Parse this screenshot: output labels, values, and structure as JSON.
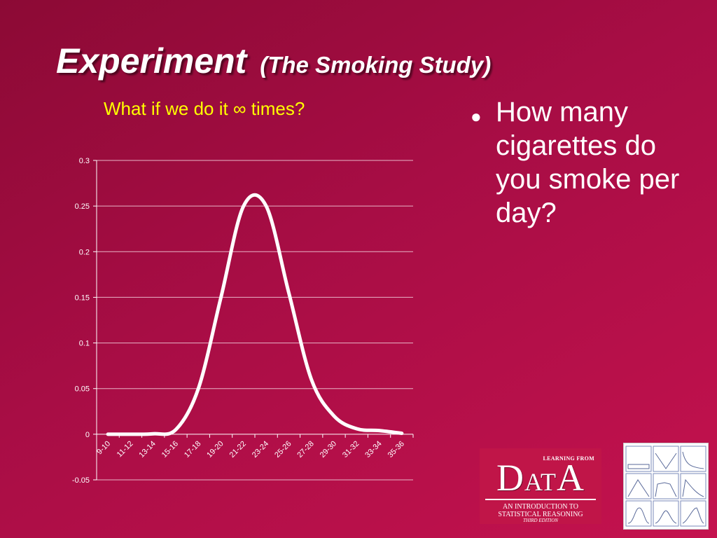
{
  "slide": {
    "title_main": "Experiment",
    "title_sub": "(The Smoking Study)",
    "subtitle": "What if we do it ∞ times?",
    "bullet_symbol": "●",
    "bullet_text": "How many cigarettes do you smoke per day?",
    "background_color": "#a80d45",
    "accent_color": "#ffff00"
  },
  "logo": {
    "top_text": "LEARNING FROM",
    "big_letters": [
      "D",
      "AT",
      "A"
    ],
    "line1": "AN INTRODUCTION TO",
    "line2": "STATISTICAL REASONING",
    "line3": "THIRD EDITION"
  },
  "chart_data": {
    "type": "line",
    "title": "",
    "xlabel": "",
    "ylabel": "",
    "categories": [
      "9-10",
      "11-12",
      "13-14",
      "15-16",
      "17-18",
      "19-20",
      "21-22",
      "23-24",
      "25-26",
      "27-28",
      "29-30",
      "31-32",
      "33-34",
      "35-36"
    ],
    "series": [
      {
        "color": "#ffffff",
        "values": [
          0.0,
          0.0,
          0.0005,
          0.005,
          0.05,
          0.15,
          0.25,
          0.25,
          0.155,
          0.06,
          0.02,
          0.006,
          0.004,
          0.001
        ]
      }
    ],
    "ylim": [
      -0.05,
      0.3
    ],
    "yticks": [
      0.3,
      0.25,
      0.2,
      0.15,
      0.1,
      0.05,
      0,
      -0.05
    ],
    "ytick_labels": [
      "0.3",
      "0.25",
      "0.2",
      "0.15",
      "0.1",
      "0.05",
      "0",
      "-0.05"
    ],
    "grid": true,
    "smooth": true,
    "legend": "none"
  }
}
